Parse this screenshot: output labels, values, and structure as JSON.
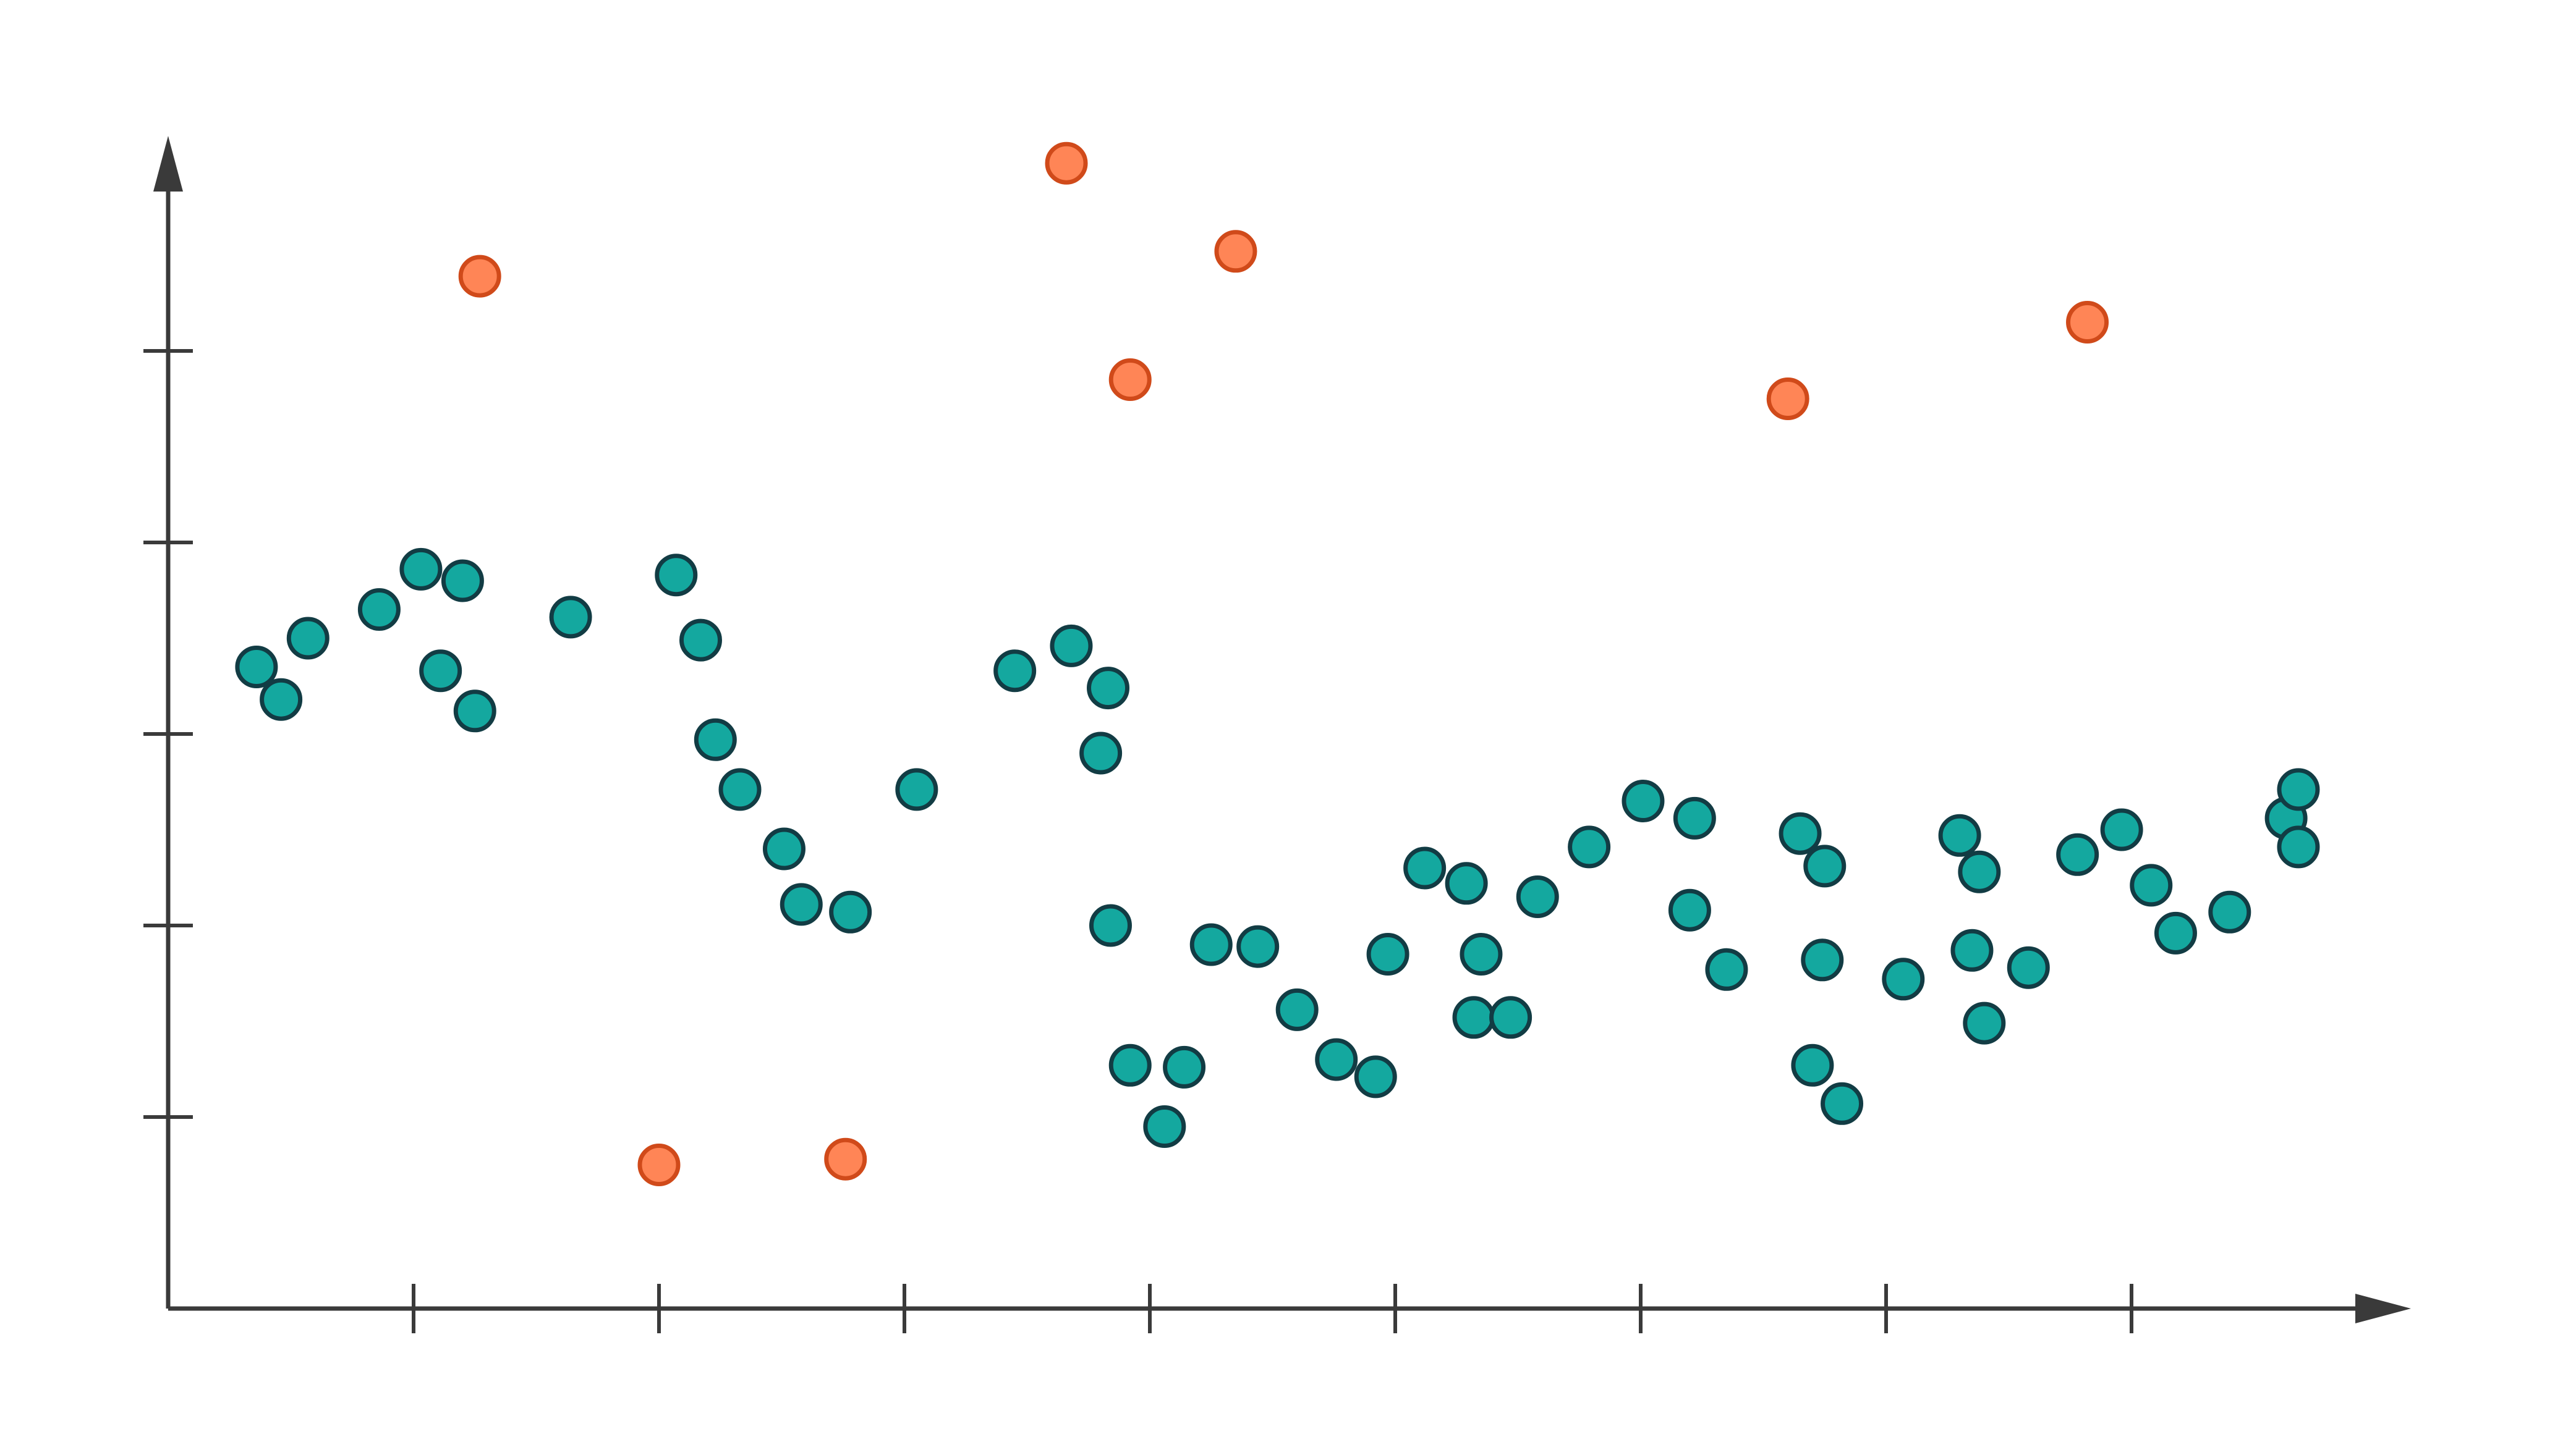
{
  "chart_data": {
    "type": "scatter",
    "title": "",
    "xlabel": "",
    "ylabel": "",
    "xlim": [
      0,
      9.2
    ],
    "ylim": [
      0,
      6
    ],
    "x_ticks": [
      1,
      2,
      3,
      4,
      5,
      6,
      7,
      8
    ],
    "y_ticks": [
      1,
      2,
      3,
      4,
      5
    ],
    "grid": false,
    "legend": "none",
    "series": [
      {
        "color": "#14a89f",
        "edge_color": "#123c44",
        "points": [
          [
            0.36,
            3.35
          ],
          [
            0.46,
            3.18
          ],
          [
            0.57,
            3.5
          ],
          [
            0.86,
            3.65
          ],
          [
            1.03,
            3.86
          ],
          [
            1.11,
            3.33
          ],
          [
            1.2,
            3.8
          ],
          [
            1.25,
            3.12
          ],
          [
            1.64,
            3.61
          ],
          [
            2.07,
            3.83
          ],
          [
            2.17,
            3.49
          ],
          [
            2.23,
            2.97
          ],
          [
            2.33,
            2.71
          ],
          [
            2.51,
            2.4
          ],
          [
            2.58,
            2.11
          ],
          [
            2.78,
            2.07
          ],
          [
            3.05,
            2.71
          ],
          [
            3.45,
            3.33
          ],
          [
            3.68,
            3.46
          ],
          [
            3.8,
            2.9
          ],
          [
            3.83,
            3.24
          ],
          [
            3.84,
            2.0
          ],
          [
            3.92,
            1.27
          ],
          [
            4.06,
            0.95
          ],
          [
            4.14,
            1.26
          ],
          [
            4.25,
            1.9
          ],
          [
            4.44,
            1.89
          ],
          [
            4.6,
            1.56
          ],
          [
            4.76,
            1.3
          ],
          [
            4.92,
            1.21
          ],
          [
            4.97,
            1.85
          ],
          [
            5.12,
            2.3
          ],
          [
            5.29,
            2.22
          ],
          [
            5.32,
            1.52
          ],
          [
            5.35,
            1.85
          ],
          [
            5.47,
            1.52
          ],
          [
            5.58,
            2.15
          ],
          [
            5.79,
            2.41
          ],
          [
            6.01,
            2.65
          ],
          [
            6.2,
            2.08
          ],
          [
            6.22,
            2.56
          ],
          [
            6.35,
            1.77
          ],
          [
            6.65,
            2.48
          ],
          [
            6.7,
            1.27
          ],
          [
            6.74,
            1.82
          ],
          [
            6.75,
            2.31
          ],
          [
            6.82,
            1.07
          ],
          [
            7.07,
            1.72
          ],
          [
            7.3,
            2.47
          ],
          [
            7.35,
            1.87
          ],
          [
            7.38,
            2.28
          ],
          [
            7.4,
            1.49
          ],
          [
            7.58,
            1.78
          ],
          [
            7.78,
            2.37
          ],
          [
            7.96,
            2.5
          ],
          [
            8.08,
            2.21
          ],
          [
            8.18,
            1.96
          ],
          [
            8.4,
            2.07
          ],
          [
            8.63,
            2.56
          ],
          [
            8.68,
            2.41
          ],
          [
            8.68,
            2.71
          ]
        ]
      },
      {
        "color": "#ff8556",
        "edge_color": "#d04a1a",
        "points": [
          [
            1.27,
            5.39
          ],
          [
            2.0,
            0.75
          ],
          [
            2.76,
            0.78
          ],
          [
            3.66,
            5.98
          ],
          [
            3.92,
            4.85
          ],
          [
            4.35,
            5.52
          ],
          [
            6.6,
            4.75
          ],
          [
            7.82,
            5.15
          ]
        ]
      }
    ]
  }
}
